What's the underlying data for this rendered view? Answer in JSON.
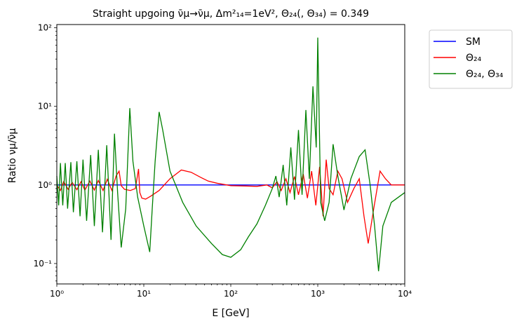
{
  "chart_data": {
    "type": "line",
    "title": "Straight upgoing ν̄μ→ν̄μ, Δm²₁₄=1eV², Θ₂₄(, Θ₃₄) = 0.349",
    "xlabel": "E [GeV]",
    "ylabel": "Ratio νμ/ν̄μ",
    "x_scale": "log",
    "y_scale": "log",
    "xlim": [
      1,
      10000
    ],
    "ylim": [
      0.055,
      110
    ],
    "x_ticks": [
      {
        "value": 1,
        "label": "10⁰"
      },
      {
        "value": 10,
        "label": "10¹"
      },
      {
        "value": 100,
        "label": "10²"
      },
      {
        "value": 1000,
        "label": "10³"
      },
      {
        "value": 10000,
        "label": "10⁴"
      }
    ],
    "y_ticks": [
      {
        "value": 0.1,
        "label": "10⁻¹"
      },
      {
        "value": 1,
        "label": "10⁰"
      },
      {
        "value": 10,
        "label": "10¹"
      },
      {
        "value": 100,
        "label": "10²"
      }
    ],
    "grid": false,
    "legend_position": "outside-top-right",
    "series": [
      {
        "name": "SM",
        "color": "#0000ff",
        "points": [
          [
            1,
            1.0
          ],
          [
            10000,
            1.0
          ]
        ]
      },
      {
        "name": "Θ₂₄",
        "color": "#ff0000",
        "points": [
          [
            1,
            1.0
          ],
          [
            1.1,
            0.85
          ],
          [
            1.2,
            1.1
          ],
          [
            1.35,
            0.88
          ],
          [
            1.5,
            1.08
          ],
          [
            1.7,
            0.87
          ],
          [
            1.9,
            1.1
          ],
          [
            2.1,
            0.86
          ],
          [
            2.4,
            1.12
          ],
          [
            2.7,
            0.86
          ],
          [
            3.0,
            1.14
          ],
          [
            3.4,
            0.85
          ],
          [
            3.8,
            1.18
          ],
          [
            4.3,
            0.85
          ],
          [
            4.8,
            1.3
          ],
          [
            5.2,
            1.5
          ],
          [
            5.5,
            0.98
          ],
          [
            6.0,
            0.88
          ],
          [
            7.0,
            0.85
          ],
          [
            8.0,
            0.9
          ],
          [
            8.7,
            1.6
          ],
          [
            9.0,
            0.8
          ],
          [
            9.5,
            0.68
          ],
          [
            10.5,
            0.66
          ],
          [
            12,
            0.72
          ],
          [
            15,
            0.85
          ],
          [
            20,
            1.2
          ],
          [
            27,
            1.55
          ],
          [
            35,
            1.45
          ],
          [
            45,
            1.25
          ],
          [
            55,
            1.12
          ],
          [
            70,
            1.05
          ],
          [
            100,
            0.98
          ],
          [
            150,
            0.97
          ],
          [
            200,
            0.96
          ],
          [
            260,
            1.0
          ],
          [
            300,
            0.92
          ],
          [
            340,
            1.1
          ],
          [
            380,
            0.85
          ],
          [
            430,
            1.2
          ],
          [
            480,
            0.8
          ],
          [
            540,
            1.28
          ],
          [
            600,
            0.75
          ],
          [
            680,
            1.38
          ],
          [
            760,
            0.68
          ],
          [
            850,
            1.5
          ],
          [
            950,
            0.55
          ],
          [
            1050,
            1.7
          ],
          [
            1150,
            0.4
          ],
          [
            1250,
            2.1
          ],
          [
            1350,
            0.9
          ],
          [
            1500,
            0.75
          ],
          [
            1700,
            1.5
          ],
          [
            1900,
            1.2
          ],
          [
            2200,
            0.6
          ],
          [
            2600,
            0.9
          ],
          [
            3000,
            1.2
          ],
          [
            3400,
            0.4
          ],
          [
            3800,
            0.18
          ],
          [
            4400,
            0.5
          ],
          [
            5200,
            1.5
          ],
          [
            6000,
            1.2
          ],
          [
            7000,
            1.0
          ],
          [
            10000,
            1.0
          ]
        ]
      },
      {
        "name": "Θ₂₄, Θ₃₄",
        "color": "#008000",
        "points": [
          [
            1,
            1.3
          ],
          [
            1.05,
            0.55
          ],
          [
            1.1,
            1.9
          ],
          [
            1.17,
            0.55
          ],
          [
            1.25,
            1.9
          ],
          [
            1.33,
            0.5
          ],
          [
            1.45,
            1.95
          ],
          [
            1.55,
            0.45
          ],
          [
            1.7,
            2.0
          ],
          [
            1.85,
            0.4
          ],
          [
            2.0,
            2.1
          ],
          [
            2.2,
            0.35
          ],
          [
            2.45,
            2.4
          ],
          [
            2.7,
            0.3
          ],
          [
            3.0,
            2.8
          ],
          [
            3.35,
            0.25
          ],
          [
            3.75,
            3.2
          ],
          [
            4.2,
            0.2
          ],
          [
            4.6,
            4.5
          ],
          [
            5.0,
            0.8
          ],
          [
            5.5,
            0.16
          ],
          [
            6.2,
            0.5
          ],
          [
            6.9,
            9.5
          ],
          [
            7.5,
            2.0
          ],
          [
            8.5,
            0.7
          ],
          [
            10,
            0.3
          ],
          [
            11.7,
            0.14
          ],
          [
            12.5,
            0.5
          ],
          [
            13.5,
            2.0
          ],
          [
            15,
            8.5
          ],
          [
            16.5,
            5.0
          ],
          [
            20,
            1.5
          ],
          [
            28,
            0.6
          ],
          [
            40,
            0.3
          ],
          [
            60,
            0.18
          ],
          [
            80,
            0.13
          ],
          [
            100,
            0.12
          ],
          [
            130,
            0.15
          ],
          [
            160,
            0.22
          ],
          [
            200,
            0.32
          ],
          [
            250,
            0.55
          ],
          [
            300,
            0.9
          ],
          [
            330,
            1.3
          ],
          [
            360,
            0.7
          ],
          [
            400,
            1.8
          ],
          [
            440,
            0.55
          ],
          [
            490,
            3.0
          ],
          [
            540,
            0.65
          ],
          [
            600,
            5.0
          ],
          [
            660,
            0.75
          ],
          [
            730,
            9.0
          ],
          [
            800,
            1.2
          ],
          [
            880,
            18
          ],
          [
            960,
            3.0
          ],
          [
            1000,
            75
          ],
          [
            1080,
            0.6
          ],
          [
            1200,
            0.35
          ],
          [
            1350,
            0.6
          ],
          [
            1500,
            3.3
          ],
          [
            1700,
            1.3
          ],
          [
            2000,
            0.48
          ],
          [
            2400,
            1.2
          ],
          [
            3000,
            2.3
          ],
          [
            3500,
            2.8
          ],
          [
            4000,
            1.0
          ],
          [
            4500,
            0.3
          ],
          [
            5000,
            0.08
          ],
          [
            5600,
            0.3
          ],
          [
            7000,
            0.6
          ],
          [
            10000,
            0.8
          ]
        ]
      }
    ]
  }
}
